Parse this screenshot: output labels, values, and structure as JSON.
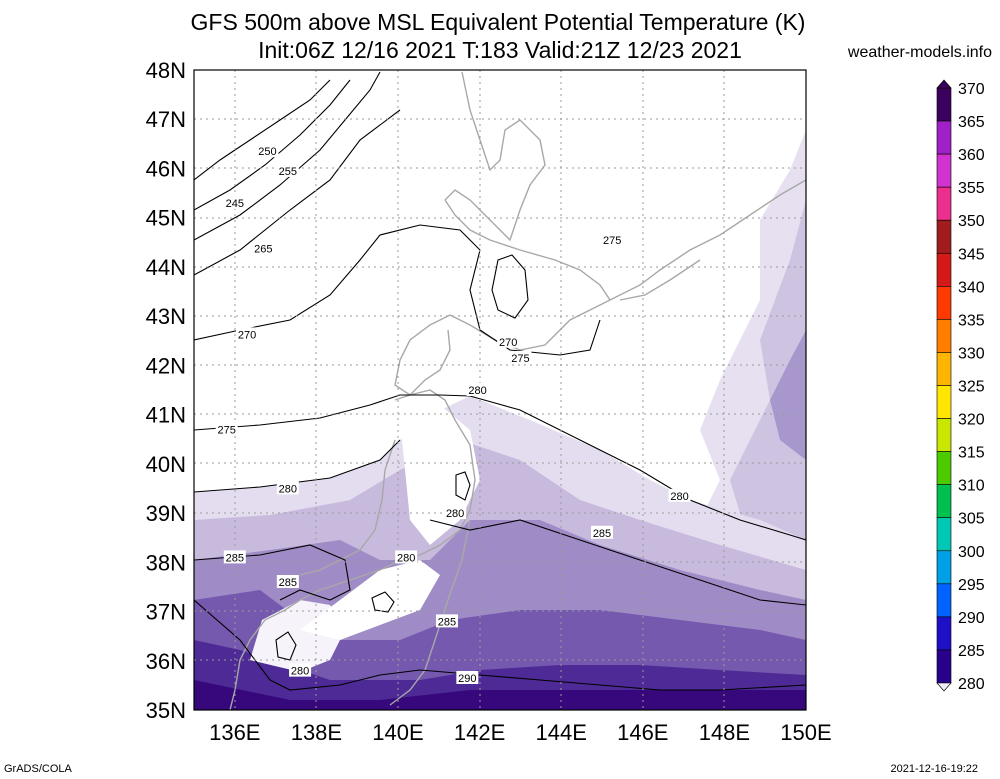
{
  "title_line1": "GFS 500m above MSL Equivalent Potential Temperature (K)",
  "title_line2": "Init:06Z 12/16 2021 T:183 Valid:21Z 12/23 2021",
  "credit": "weather-models.info",
  "footer_left": "GrADS/COLA",
  "footer_right": "2021-12-16-19:22",
  "map": {
    "lon_range": [
      135,
      150
    ],
    "lat_range": [
      35,
      48
    ],
    "lat_labels": [
      "48N",
      "47N",
      "46N",
      "45N",
      "44N",
      "43N",
      "42N",
      "41N",
      "40N",
      "39N",
      "38N",
      "37N",
      "36N",
      "35N"
    ],
    "lon_labels": [
      "136E",
      "138E",
      "140E",
      "142E",
      "144E",
      "146E",
      "148E",
      "150E"
    ],
    "contour_labels": [
      {
        "text": "250",
        "lon": 136.8,
        "lat": 46.35
      },
      {
        "text": "255",
        "lon": 137.3,
        "lat": 45.95
      },
      {
        "text": "245",
        "lon": 136.0,
        "lat": 45.3
      },
      {
        "text": "265",
        "lon": 136.7,
        "lat": 44.37
      },
      {
        "text": "270",
        "lon": 136.3,
        "lat": 42.63
      },
      {
        "text": "275",
        "lon": 135.8,
        "lat": 40.7
      },
      {
        "text": "280",
        "lon": 137.3,
        "lat": 39.5
      },
      {
        "text": "285",
        "lon": 136.0,
        "lat": 38.1
      },
      {
        "text": "285",
        "lon": 137.3,
        "lat": 37.6
      },
      {
        "text": "280",
        "lon": 140.2,
        "lat": 38.1
      },
      {
        "text": "280",
        "lon": 141.4,
        "lat": 39.0
      },
      {
        "text": "280",
        "lon": 141.95,
        "lat": 41.5
      },
      {
        "text": "270",
        "lon": 142.7,
        "lat": 42.48
      },
      {
        "text": "275",
        "lon": 143.0,
        "lat": 42.15
      },
      {
        "text": "275",
        "lon": 145.25,
        "lat": 44.55
      },
      {
        "text": "280",
        "lon": 146.9,
        "lat": 39.35
      },
      {
        "text": "285",
        "lon": 145.0,
        "lat": 38.6
      },
      {
        "text": "285",
        "lon": 141.2,
        "lat": 36.8
      },
      {
        "text": "280",
        "lon": 137.6,
        "lat": 35.8
      },
      {
        "text": "290",
        "lon": 141.7,
        "lat": 35.65
      }
    ]
  },
  "legend": {
    "values": [
      "370",
      "365",
      "360",
      "355",
      "350",
      "345",
      "340",
      "335",
      "330",
      "325",
      "320",
      "315",
      "310",
      "305",
      "300",
      "295",
      "290",
      "285",
      "280"
    ],
    "colors": [
      "#3c005e",
      "#a020c8",
      "#d033d0",
      "#ec2e8c",
      "#a11d1d",
      "#d41919",
      "#ff3a00",
      "#ff7e00",
      "#ffb400",
      "#ffe600",
      "#c8e600",
      "#4ccc00",
      "#00c050",
      "#00c8b4",
      "#00a0e6",
      "#0062ff",
      "#1f10c8",
      "#28008c",
      "#f0ecf6"
    ]
  }
}
